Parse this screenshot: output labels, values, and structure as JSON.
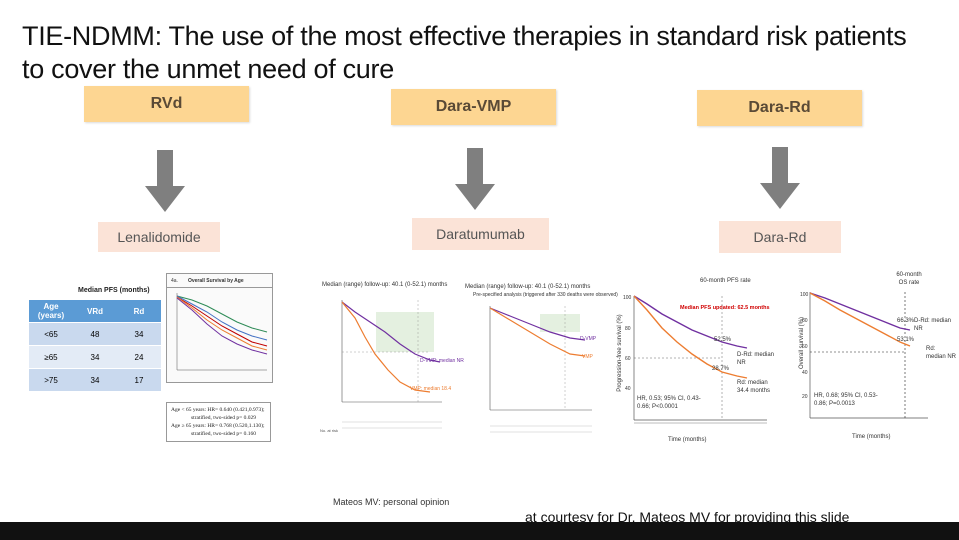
{
  "title": "TIE-NDMM: The use of the most effective therapies in standard risk patients to cover the unmet need of cure",
  "columns": [
    {
      "header": "RVd",
      "drug": "Lenalidomide"
    },
    {
      "header": "Dara-VMP",
      "drug": "Daratumumab"
    },
    {
      "header": "Dara-Rd",
      "drug": "Dara-Rd"
    }
  ],
  "pfs_table": {
    "title": "Median PFS (months)",
    "headers": [
      "Age (years)",
      "VRd",
      "Rd"
    ],
    "rows": [
      [
        "<65",
        "48",
        "34"
      ],
      [
        "≥65",
        "34",
        "24"
      ],
      [
        ">75",
        "34",
        "17"
      ]
    ]
  },
  "os_by_age": {
    "header_tag": "4a.",
    "title": "Overall Survival by Age",
    "stats_lines": [
      "Age < 65 years: HR= 0.640 (0.421,0.973);",
      "stratified, two-sided p= 0.029",
      "Age ≥ 65 years: HR= 0.768 (0.520,1.130);",
      "stratified, two-sided p= 0.160"
    ]
  },
  "dara_vmp_pfs": {
    "median_note": "Median (range) follow-up: 40.1 (0-52.1) months",
    "median_pfs_label": "D-VMP: median NR",
    "vmp_label": "VMP: median 18.4"
  },
  "dara_vmp_os": {
    "median_note": "Median (range) follow-up: 40.1 (0-52.1) months",
    "sub_note": "Pre-specified analysis (triggered after 330 deaths were observed)",
    "dvmp_label": "D-VMP",
    "vmp_label": "VMP"
  },
  "maia_pfs": {
    "header": "60-month PFS rate",
    "highlight": "Median PFS updated: 62.5 months",
    "ylabel": "Progression-free survival (%)",
    "xlabel": "Time (months)",
    "drd_pct": "52.5%",
    "drd_label": "D-Rd: median NR",
    "rd_pct": "28.7%",
    "rd_label": "Rd: median 34.4 months",
    "stats": "HR, 0.53; 95% CI, 0.43-0.66; P<0.0001"
  },
  "maia_os": {
    "header": "60-month OS rate",
    "ylabel": "Overall survival (%)",
    "xlabel": "Time (months)",
    "drd_pct": "66.3%",
    "drd_label": "D-Rd: median NR",
    "rd_pct": "53.1%",
    "rd_label": "Rd: median NR",
    "stats": "HR, 0.68; 95% CI, 0.53-0.86; P=0.0013"
  },
  "footer_note": "Mateos MV: personal opinion",
  "courtesy": "at courtesy for Dr. Mateos MV for providing this slide",
  "colors": {
    "pill": "#fdd692",
    "subpill": "#fbe3d7",
    "arrow": "#7f7f7f",
    "drd": "#7030a0",
    "rd": "#ed7d31"
  }
}
